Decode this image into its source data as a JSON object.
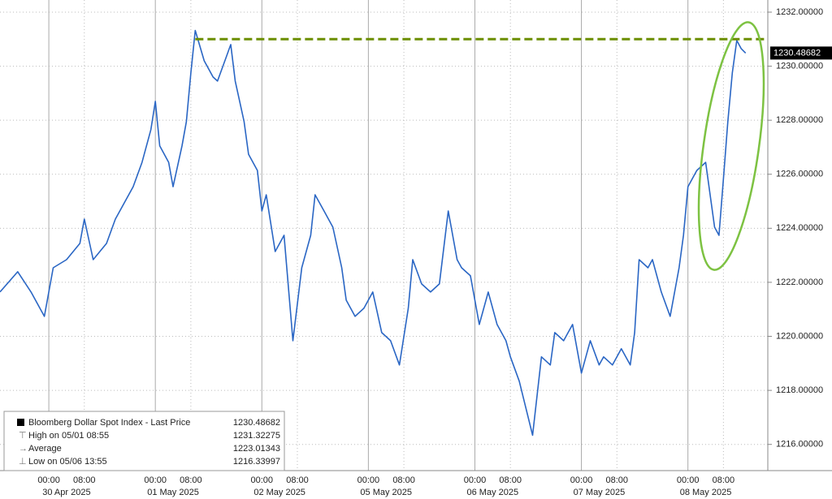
{
  "chart_data": {
    "type": "line",
    "series": [
      {
        "name": "Bloomberg Dollar Spot Index - Last Price",
        "color": "#2a66c4",
        "x": [
          0,
          4,
          7,
          10,
          12,
          15,
          18,
          19,
          21,
          24,
          26,
          27,
          30,
          32,
          34,
          35,
          36,
          38,
          39,
          41,
          42,
          43,
          44,
          46,
          48,
          49,
          51,
          52,
          53,
          55,
          56,
          58,
          59,
          60,
          62,
          64,
          66,
          68,
          70,
          71,
          73,
          75,
          77,
          78,
          80,
          82,
          84,
          86,
          88,
          90,
          92,
          93,
          95,
          97,
          99,
          101,
          103,
          104,
          106,
          108,
          110,
          112,
          114,
          115,
          117,
          120,
          122,
          124,
          125,
          127,
          129,
          131,
          133,
          135,
          136,
          138,
          140,
          142,
          143,
          144,
          146,
          147,
          149,
          151,
          153,
          154,
          155,
          157,
          159,
          160,
          161,
          162,
          163,
          164,
          165,
          166,
          167,
          168
        ],
        "values": [
          1221.64,
          1222.39,
          1221.64,
          1220.74,
          1222.54,
          1222.84,
          1223.44,
          1224.34,
          1222.84,
          1223.44,
          1224.34,
          1224.64,
          1225.54,
          1226.44,
          1227.65,
          1228.7,
          1227.05,
          1226.44,
          1225.54,
          1227.05,
          1227.95,
          1229.75,
          1231.32275,
          1230.2,
          1229.6,
          1229.45,
          1230.35,
          1230.8,
          1229.45,
          1227.95,
          1226.74,
          1226.14,
          1224.64,
          1225.24,
          1223.14,
          1223.74,
          1219.84,
          1222.54,
          1223.74,
          1225.24,
          1224.64,
          1224.04,
          1222.54,
          1221.34,
          1220.74,
          1221.04,
          1221.64,
          1220.14,
          1219.84,
          1218.94,
          1221.04,
          1222.84,
          1221.94,
          1221.64,
          1221.94,
          1224.64,
          1222.84,
          1222.54,
          1222.24,
          1220.44,
          1221.64,
          1220.44,
          1219.84,
          1219.24,
          1218.34,
          1216.33997,
          1219.24,
          1218.94,
          1220.14,
          1219.84,
          1220.44,
          1218.64,
          1219.84,
          1218.94,
          1219.24,
          1218.94,
          1219.54,
          1218.94,
          1220.14,
          1222.84,
          1222.54,
          1222.84,
          1221.64,
          1220.74,
          1222.54,
          1223.74,
          1225.54,
          1226.14,
          1226.44,
          1225.24,
          1224.04,
          1223.74,
          1225.84,
          1227.95,
          1229.75,
          1230.95,
          1230.65,
          1230.48682
        ]
      }
    ],
    "xlim": [
      0,
      173
    ],
    "xticks": [
      {
        "value": 11,
        "label": "00:00"
      },
      {
        "value": 19,
        "label": "08:00"
      },
      {
        "value": 35,
        "label": "00:00"
      },
      {
        "value": 43,
        "label": "08:00"
      },
      {
        "value": 59,
        "label": "00:00"
      },
      {
        "value": 67,
        "label": "08:00"
      },
      {
        "value": 83,
        "label": "00:00"
      },
      {
        "value": 91,
        "label": "08:00"
      },
      {
        "value": 107,
        "label": "00:00"
      },
      {
        "value": 115,
        "label": "08:00"
      },
      {
        "value": 131,
        "label": "00:00"
      },
      {
        "value": 139,
        "label": "08:00"
      },
      {
        "value": 155,
        "label": "00:00"
      },
      {
        "value": 163,
        "label": "08:00"
      }
    ],
    "dates": [
      "30 Apr 2025",
      "01 May 2025",
      "02 May 2025",
      "05 May 2025",
      "06 May 2025",
      "07 May 2025",
      "08 May 2025"
    ],
    "ylim": [
      1215.03,
      1232.45
    ],
    "yticks": [
      {
        "value": 1216,
        "label": "1216.00000"
      },
      {
        "value": 1218,
        "label": "1218.00000"
      },
      {
        "value": 1220,
        "label": "1220.00000"
      },
      {
        "value": 1222,
        "label": "1222.00000"
      },
      {
        "value": 1224,
        "label": "1224.00000"
      },
      {
        "value": 1226,
        "label": "1226.00000"
      },
      {
        "value": 1228,
        "label": "1228.00000"
      },
      {
        "value": 1230,
        "label": "1230.00000"
      },
      {
        "value": 1232,
        "label": "1232.00000"
      }
    ],
    "grid": true,
    "last_price": 1230.48682,
    "stats": [
      {
        "label": "High on 05/01 08:55",
        "value": 1231.32275
      },
      {
        "label": "Average",
        "value": 1223.01343
      },
      {
        "label": "Low on 05/06 13:55",
        "value": 1216.33997
      }
    ],
    "reference_line": {
      "value": 1231,
      "x": [
        44,
        173
      ],
      "color": "#6b8e00"
    }
  }
}
